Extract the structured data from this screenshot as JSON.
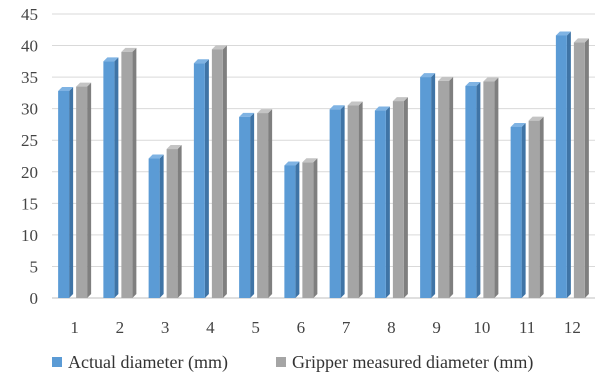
{
  "chart_data": {
    "type": "bar",
    "categories": [
      "1",
      "2",
      "3",
      "4",
      "5",
      "6",
      "7",
      "8",
      "9",
      "10",
      "11",
      "12"
    ],
    "series": [
      {
        "name": "Actual diameter (mm)",
        "color": "#5B9BD5",
        "values": [
          32.8,
          37.5,
          22.1,
          37.2,
          28.7,
          21.0,
          29.9,
          29.7,
          35.0,
          33.6,
          27.1,
          41.6
        ]
      },
      {
        "name": "Gripper measured diameter (mm)",
        "color": "#A5A5A5",
        "values": [
          33.5,
          39.0,
          23.6,
          39.4,
          29.3,
          21.5,
          30.5,
          31.2,
          34.4,
          34.3,
          28.1,
          40.5
        ]
      }
    ],
    "yticks": [
      "0",
      "5",
      "10",
      "15",
      "20",
      "25",
      "30",
      "35",
      "40",
      "45"
    ],
    "ylim": [
      0,
      45
    ],
    "grid": true,
    "legend_position": "bottom",
    "title": "",
    "xlabel": "",
    "ylabel": ""
  }
}
